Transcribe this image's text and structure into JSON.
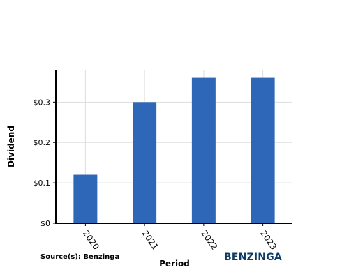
{
  "chart_data": {
    "type": "bar",
    "categories": [
      "2020",
      "2021",
      "2022",
      "2023"
    ],
    "values": [
      0.12,
      0.3,
      0.36,
      0.36
    ],
    "title": "",
    "xlabel": "Period",
    "ylabel": "Dividend",
    "ylim": [
      0,
      0.38
    ],
    "yticks": [
      0,
      0.1,
      0.2,
      0.3
    ],
    "ytick_labels": [
      "$0",
      "$0.1",
      "$0.2",
      "$0.3"
    ],
    "grid": true,
    "bar_color": "#2f67b8"
  },
  "source": "Source(s): Benzinga",
  "brand": {
    "name": "BENZINGA",
    "color": "#0d3b66"
  }
}
